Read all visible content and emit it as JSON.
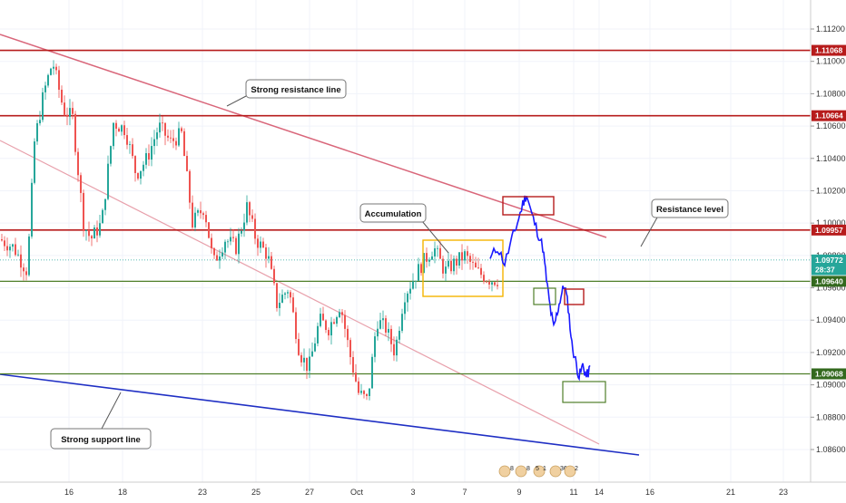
{
  "chart_data": {
    "type": "candlestick",
    "instrument_note": "",
    "y_axis": {
      "ticks": [
        "1.11200",
        "1.11000",
        "1.10800",
        "1.10600",
        "1.10400",
        "1.10200",
        "1.10000",
        "1.09800",
        "1.09600",
        "1.09400",
        "1.09200",
        "1.09000",
        "1.08800",
        "1.08600"
      ],
      "ylim": [
        1.0855,
        1.1128
      ]
    },
    "x_axis": {
      "ticks": [
        "16",
        "18",
        "23",
        "25",
        "27",
        "Oct",
        "3",
        "7",
        "9",
        "11",
        "14",
        "16",
        "21",
        "23"
      ]
    },
    "price_tags": [
      {
        "label": "1.11068",
        "value": 1.11068,
        "color": "#b71c1c"
      },
      {
        "label": "1.10664",
        "value": 1.10664,
        "color": "#b71c1c"
      },
      {
        "label": "1.09957",
        "value": 1.09957,
        "color": "#b71c1c"
      },
      {
        "label": "1.09772",
        "value": 1.09772,
        "color": "#26a69a"
      },
      {
        "label": "28:37",
        "value": 1.09712,
        "color": "#26a69a"
      },
      {
        "label": "1.09640",
        "value": 1.0964,
        "color": "#33691e"
      },
      {
        "label": "1.09068",
        "value": 1.09068,
        "color": "#33691e"
      }
    ],
    "levels": [
      {
        "name": "resistance-1.11068",
        "value": 1.11068,
        "color": "#b71c1c"
      },
      {
        "name": "resistance-1.10664",
        "value": 1.10664,
        "color": "#b71c1c"
      },
      {
        "name": "resistance-1.09957",
        "value": 1.09957,
        "color": "#b71c1c"
      },
      {
        "name": "support-1.09640",
        "value": 1.0964,
        "color": "#4f7f2a"
      },
      {
        "name": "support-1.09068",
        "value": 1.09068,
        "color": "#4f7f2a"
      }
    ],
    "annotations": [
      {
        "text": "Strong resistance line"
      },
      {
        "text": "Accumulation"
      },
      {
        "text": "Resistance level"
      },
      {
        "text": "Strong support line"
      }
    ],
    "event_markers": [
      "8",
      "8",
      "5",
      "1",
      "36",
      "2"
    ],
    "colors": {
      "up": "#26a69a",
      "down": "#ef5350",
      "projection": "#1a1aff",
      "resistance": "#b71c1c",
      "support": "#4f7f2a",
      "trend_upper": "#d9667a",
      "trend_lower": "#e8a0ab",
      "support_trend": "#1f2fc4",
      "accumulation_box": "#f4b400"
    }
  }
}
